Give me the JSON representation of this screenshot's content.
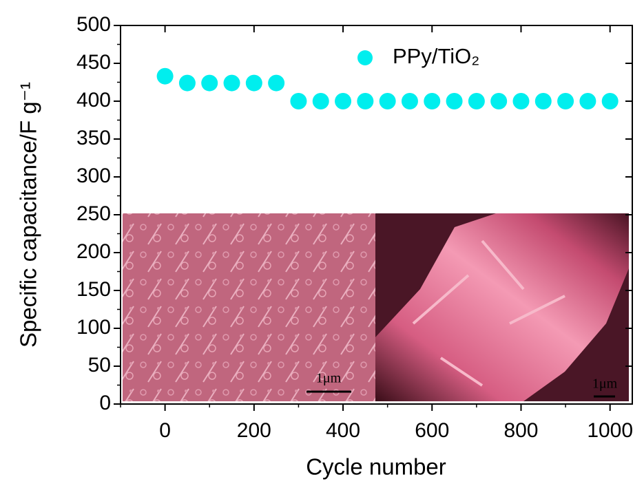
{
  "chart_data": {
    "type": "scatter",
    "ylabel": "Specific capacitance/F g⁻¹",
    "xlabel": "Cycle number",
    "x": [
      0,
      50,
      100,
      150,
      200,
      250,
      300,
      350,
      400,
      450,
      500,
      550,
      600,
      650,
      700,
      750,
      800,
      850,
      900,
      950,
      1000
    ],
    "series": [
      {
        "name": "PPy/TiO₂",
        "color": "#00eeee",
        "values": [
          433,
          424,
          424,
          424,
          424,
          424,
          400,
          400,
          400,
          400,
          400,
          400,
          400,
          400,
          400,
          400,
          400,
          400,
          400,
          400,
          400
        ]
      }
    ],
    "xlim": [
      -100,
      1050
    ],
    "ylim": [
      0,
      500
    ],
    "xticks": [
      0,
      200,
      400,
      600,
      800,
      1000
    ],
    "xminor_ticks": [
      -100,
      100,
      300,
      500,
      700,
      900
    ],
    "yticks": [
      0,
      50,
      100,
      150,
      200,
      250,
      300,
      350,
      400,
      450,
      500
    ],
    "yminor_ticks": [
      25,
      75,
      125,
      175,
      225,
      275,
      325,
      375,
      425,
      475
    ],
    "legend": "top-right",
    "insets": [
      {
        "scale_label": "1μm"
      },
      {
        "scale_label": "1μm"
      }
    ]
  }
}
